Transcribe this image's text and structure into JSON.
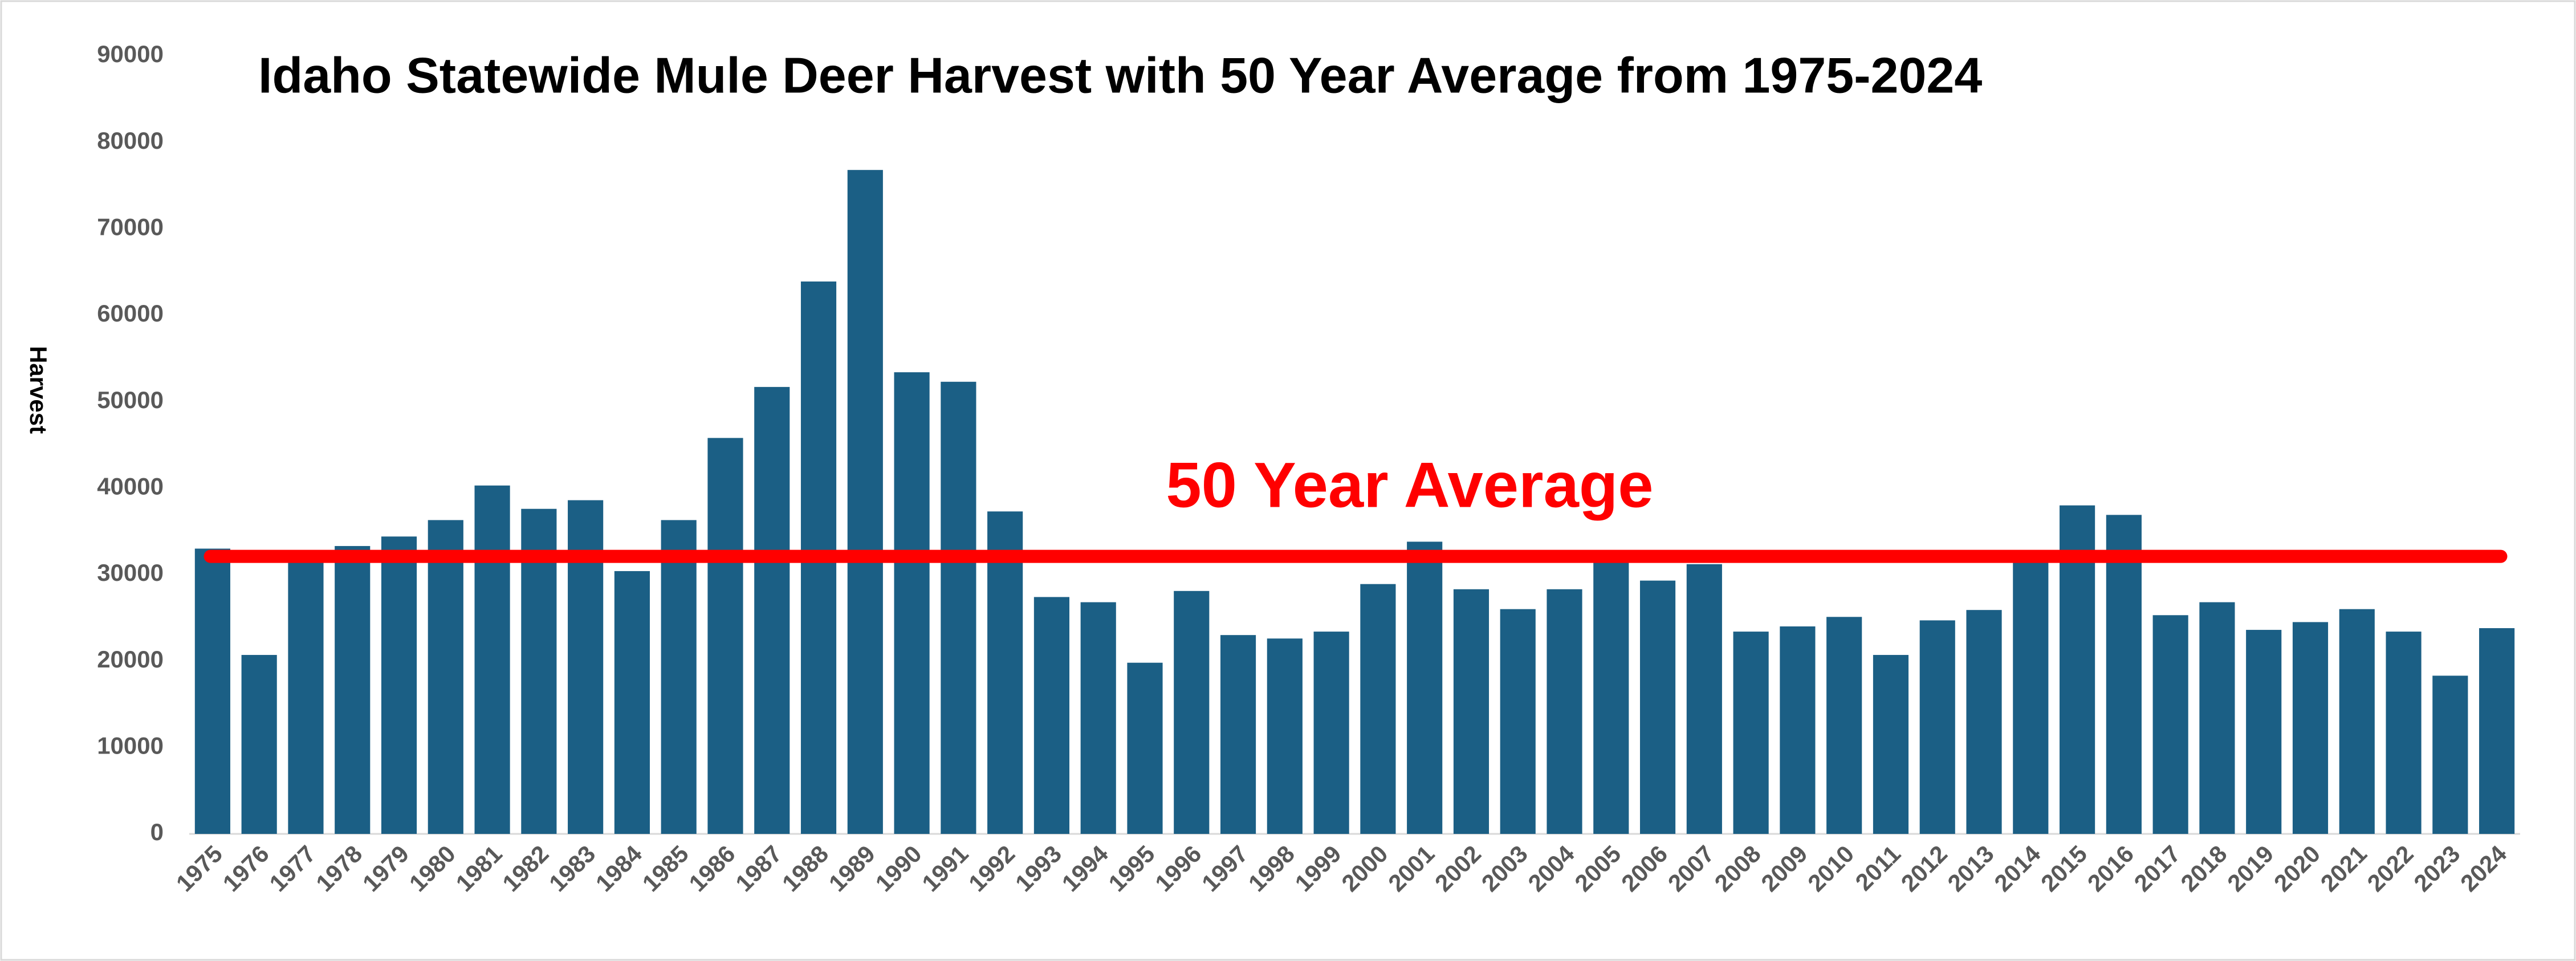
{
  "chart_data": {
    "type": "bar",
    "title": "Idaho Statewide Mule Deer Harvest with 50 Year Average from 1975-2024",
    "y_label": "Harvest",
    "categories": [
      "1975",
      "1976",
      "1977",
      "1978",
      "1979",
      "1980",
      "1981",
      "1982",
      "1983",
      "1984",
      "1985",
      "1986",
      "1987",
      "1988",
      "1989",
      "1990",
      "1991",
      "1992",
      "1993",
      "1994",
      "1995",
      "1996",
      "1997",
      "1998",
      "1999",
      "2000",
      "2001",
      "2002",
      "2003",
      "2004",
      "2005",
      "2006",
      "2007",
      "2008",
      "2009",
      "2010",
      "2011",
      "2012",
      "2013",
      "2014",
      "2015",
      "2016",
      "2017",
      "2018",
      "2019",
      "2020",
      "2021",
      "2022",
      "2023",
      "2024"
    ],
    "values": [
      33000,
      20700,
      32500,
      33300,
      34400,
      36300,
      40300,
      37600,
      38600,
      30400,
      36300,
      45800,
      51700,
      63900,
      76800,
      53400,
      52300,
      37300,
      27400,
      26800,
      19800,
      28100,
      23000,
      22600,
      23400,
      28900,
      33800,
      28300,
      26000,
      28300,
      32000,
      29300,
      31200,
      23400,
      24000,
      25100,
      20700,
      24700,
      25900,
      32000,
      38000,
      36900,
      25300,
      26800,
      23600,
      24500,
      26000,
      23400,
      18300,
      23800
    ],
    "color": "#1b5f85",
    "ylim": [
      0,
      90000
    ],
    "yticks": [
      0,
      10000,
      20000,
      30000,
      40000,
      50000,
      60000,
      70000,
      80000,
      90000
    ],
    "grid": false,
    "average_line": {
      "label": "50 Year Average",
      "value": 32100,
      "color": "#ff0000"
    }
  }
}
